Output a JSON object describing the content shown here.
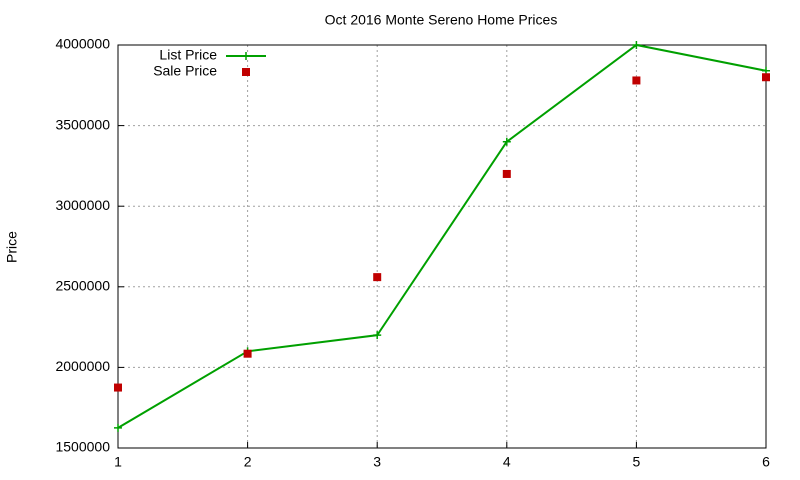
{
  "chart_data": {
    "type": "line",
    "title": "Oct 2016 Monte Sereno Home Prices",
    "y_label": "Price",
    "x": [
      1,
      2,
      3,
      4,
      5,
      6
    ],
    "series": [
      {
        "name": "List Price",
        "color": "#00a000",
        "style": "linespoints",
        "values": [
          1625000,
          2100000,
          2200000,
          3400000,
          4000000,
          3840000
        ]
      },
      {
        "name": "Sale Price",
        "color": "#c00000",
        "style": "points",
        "values": [
          1875000,
          2085000,
          2560000,
          3200000,
          3780000,
          3800000
        ]
      }
    ],
    "xlim": [
      1,
      6
    ],
    "xticks": [
      1,
      2,
      3,
      4,
      5,
      6
    ],
    "ylim": [
      1500000,
      4000000
    ],
    "yticks": [
      1500000,
      2000000,
      2500000,
      3000000,
      3500000,
      4000000
    ],
    "grid": true,
    "legend": "top-left"
  }
}
